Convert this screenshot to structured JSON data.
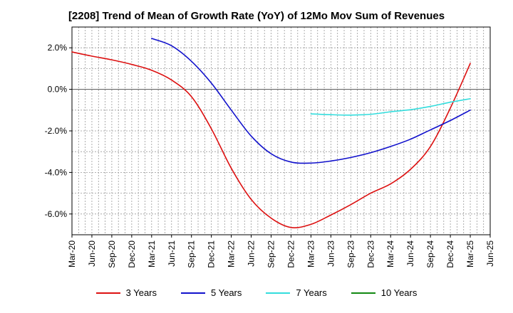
{
  "chart_data": {
    "type": "line",
    "title": "[2208]  Trend of Mean of Growth Rate (YoY) of 12Mo Mov Sum of Revenues",
    "xlabel": "",
    "ylabel": "",
    "ylim": [
      -7.0,
      3.0
    ],
    "yticks": [
      2.0,
      0.0,
      -2.0,
      -4.0,
      -6.0
    ],
    "ytick_labels": [
      "2.0%",
      "0.0%",
      "-2.0%",
      "-4.0%",
      "-6.0%"
    ],
    "x_tick_labels": [
      "Mar-20",
      "Jun-20",
      "Sep-20",
      "Dec-20",
      "Mar-21",
      "Jun-21",
      "Sep-21",
      "Dec-21",
      "Mar-22",
      "Jun-22",
      "Sep-22",
      "Dec-22",
      "Mar-23",
      "Jun-23",
      "Sep-23",
      "Dec-23",
      "Mar-24",
      "Jun-24",
      "Sep-24",
      "Dec-24",
      "Mar-25",
      "Jun-25"
    ],
    "grid": true,
    "series": [
      {
        "name": "3 Years",
        "color": "#dd1111",
        "points": [
          [
            0,
            1.8
          ],
          [
            1,
            1.6
          ],
          [
            2,
            1.42
          ],
          [
            3,
            1.2
          ],
          [
            4,
            0.92
          ],
          [
            5,
            0.45
          ],
          [
            6,
            -0.35
          ],
          [
            7,
            -1.9
          ],
          [
            8,
            -3.8
          ],
          [
            9,
            -5.3
          ],
          [
            10,
            -6.2
          ],
          [
            11,
            -6.65
          ],
          [
            12,
            -6.5
          ],
          [
            13,
            -6.05
          ],
          [
            14,
            -5.55
          ],
          [
            15,
            -5.0
          ],
          [
            16,
            -4.55
          ],
          [
            17,
            -3.85
          ],
          [
            18,
            -2.75
          ],
          [
            19,
            -0.9
          ],
          [
            20,
            1.25
          ]
        ]
      },
      {
        "name": "5 Years",
        "color": "#1111cc",
        "points": [
          [
            4,
            2.45
          ],
          [
            5,
            2.1
          ],
          [
            6,
            1.35
          ],
          [
            7,
            0.3
          ],
          [
            8,
            -1.0
          ],
          [
            9,
            -2.25
          ],
          [
            10,
            -3.1
          ],
          [
            11,
            -3.5
          ],
          [
            12,
            -3.55
          ],
          [
            13,
            -3.45
          ],
          [
            14,
            -3.28
          ],
          [
            15,
            -3.05
          ],
          [
            16,
            -2.75
          ],
          [
            17,
            -2.4
          ],
          [
            18,
            -1.95
          ],
          [
            19,
            -1.5
          ],
          [
            20,
            -1.0
          ]
        ]
      },
      {
        "name": "7 Years",
        "color": "#33dddd",
        "points": [
          [
            12,
            -1.18
          ],
          [
            13,
            -1.22
          ],
          [
            14,
            -1.24
          ],
          [
            15,
            -1.2
          ],
          [
            16,
            -1.08
          ],
          [
            17,
            -0.98
          ],
          [
            18,
            -0.82
          ],
          [
            19,
            -0.62
          ],
          [
            20,
            -0.45
          ]
        ]
      },
      {
        "name": "10 Years",
        "color": "#118811",
        "points": []
      }
    ]
  }
}
